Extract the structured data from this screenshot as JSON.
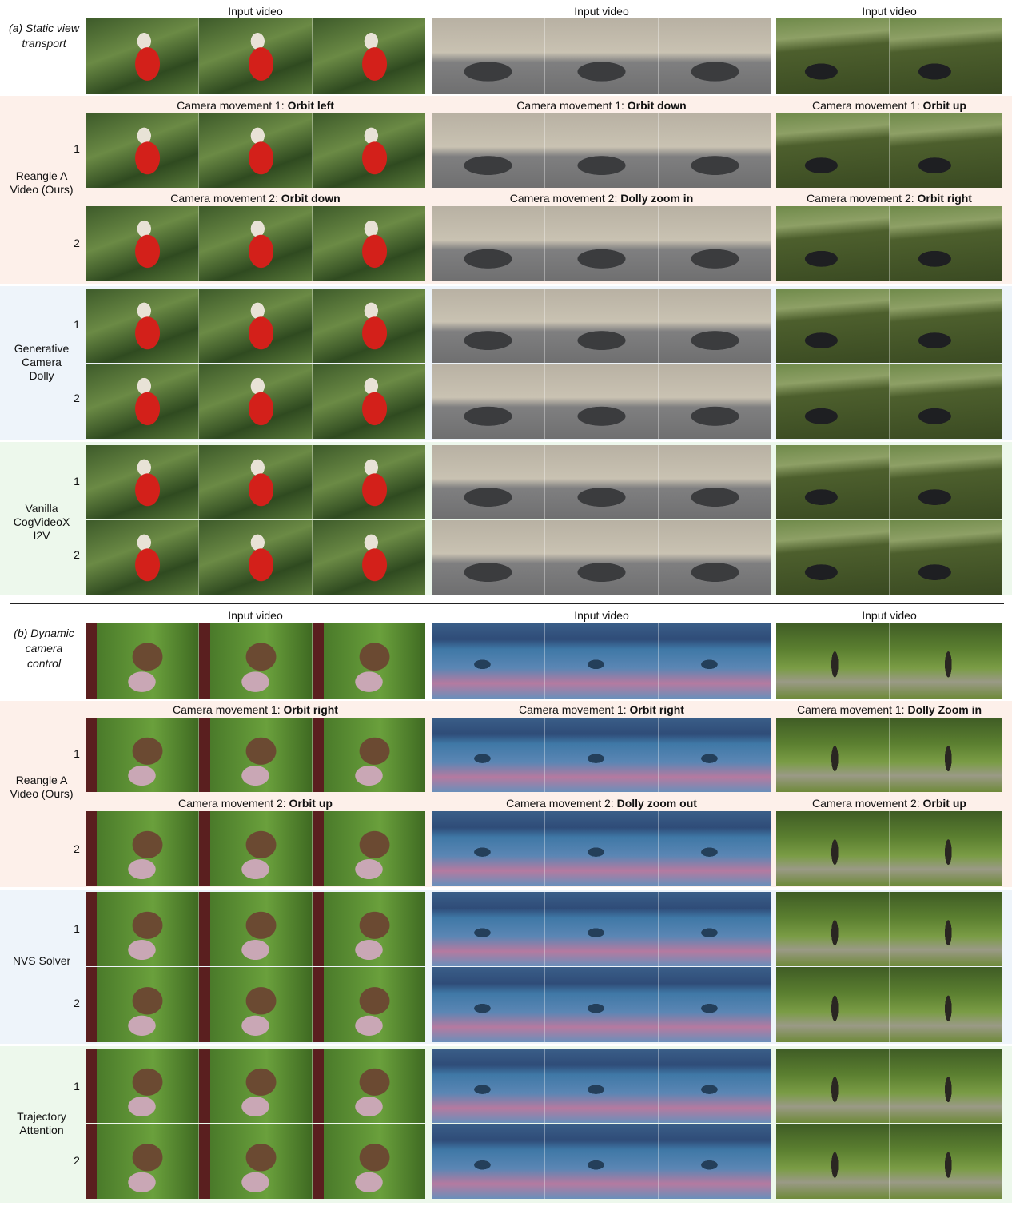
{
  "section_a": {
    "label": "(a) Static view transport",
    "input_captions": [
      "Input video",
      "Input video",
      "Input video"
    ],
    "ours_label": "Reangle A Video (Ours)",
    "ours_m1": [
      {
        "prefix": "Camera movement 1: ",
        "move": "Orbit left"
      },
      {
        "prefix": "Camera movement 1: ",
        "move": "Orbit down"
      },
      {
        "prefix": "Camera movement 1: ",
        "move": "Orbit up"
      }
    ],
    "ours_m2": [
      {
        "prefix": "Camera movement 2: ",
        "move": "Orbit down"
      },
      {
        "prefix": "Camera movement 2: ",
        "move": "Dolly zoom in"
      },
      {
        "prefix": "Camera movement 2: ",
        "move": "Orbit right"
      }
    ],
    "baseline1": "Generative Camera Dolly",
    "baseline2": "Vanilla CogVideoX I2V"
  },
  "section_b": {
    "label": "(b) Dynamic camera control",
    "input_captions": [
      "Input video",
      "Input video",
      "Input video"
    ],
    "ours_label": "Reangle A Video (Ours)",
    "ours_m1": [
      {
        "prefix": "Camera movement 1: ",
        "move": "Orbit right"
      },
      {
        "prefix": "Camera movement 1: ",
        "move": "Orbit right"
      },
      {
        "prefix": "Camera movement 1: ",
        "move": "Dolly Zoom in"
      }
    ],
    "ours_m2": [
      {
        "prefix": "Camera movement 2: ",
        "move": "Orbit up"
      },
      {
        "prefix": "Camera movement 2: ",
        "move": "Dolly zoom out"
      },
      {
        "prefix": "Camera movement 2: ",
        "move": "Orbit up"
      }
    ],
    "baseline1": "NVS Solver",
    "baseline2": "Trajectory Attention"
  },
  "row_numbers": [
    "1",
    "2"
  ]
}
